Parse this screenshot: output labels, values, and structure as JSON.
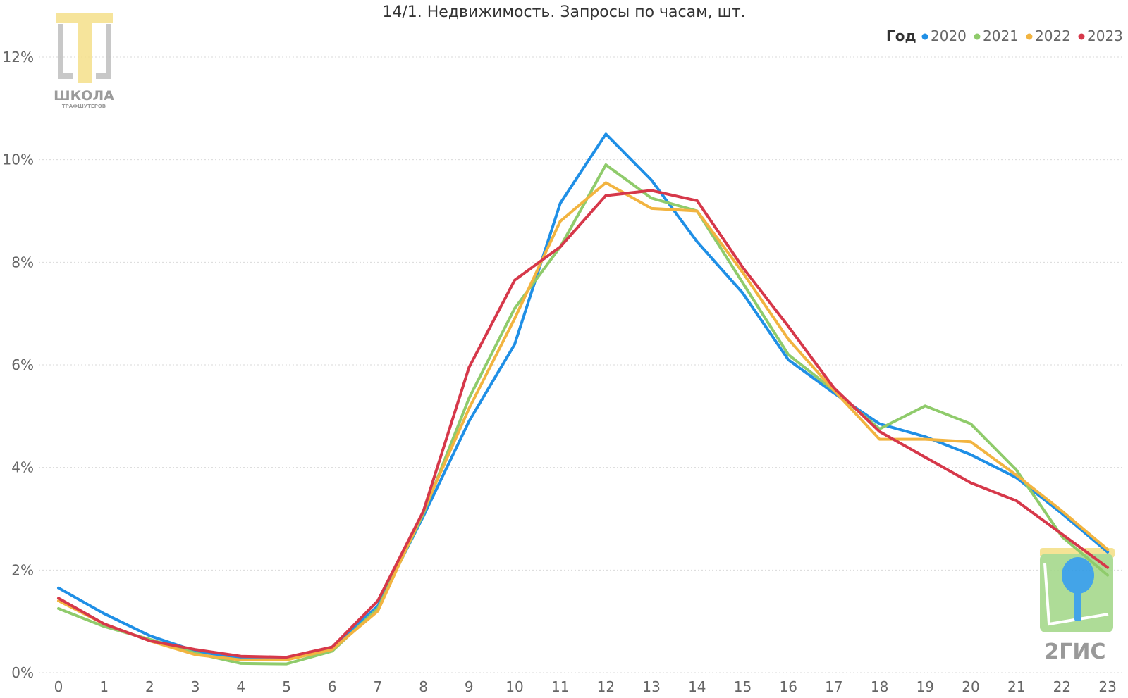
{
  "chart_data": {
    "type": "line",
    "title": "14/1. Недвижимость. Запросы по часам, шт.",
    "xlabel": "",
    "ylabel": "",
    "categories": [
      "0",
      "1",
      "2",
      "3",
      "4",
      "5",
      "6",
      "7",
      "8",
      "9",
      "10",
      "11",
      "12",
      "13",
      "14",
      "15",
      "16",
      "17",
      "18",
      "19",
      "20",
      "21",
      "22",
      "23"
    ],
    "ylim": [
      0,
      12
    ],
    "yticks": [
      0,
      2,
      4,
      6,
      8,
      10,
      12
    ],
    "ytick_labels": [
      "0%",
      "2%",
      "4%",
      "6%",
      "8%",
      "10%",
      "12%"
    ],
    "grid": true,
    "legend": {
      "title": "Год",
      "position": "top-right"
    },
    "series": [
      {
        "name": "2020",
        "color": "#1f8fe6",
        "values": [
          1.65,
          1.15,
          0.72,
          0.42,
          0.28,
          0.27,
          0.5,
          1.3,
          3.05,
          4.9,
          6.4,
          9.15,
          10.5,
          9.6,
          8.4,
          7.4,
          6.1,
          5.45,
          4.85,
          4.6,
          4.25,
          3.8,
          3.1,
          2.35
        ]
      },
      {
        "name": "2021",
        "color": "#8fcb6b",
        "values": [
          1.25,
          0.9,
          0.65,
          0.38,
          0.18,
          0.17,
          0.42,
          1.25,
          3.1,
          5.35,
          7.1,
          8.3,
          9.9,
          9.25,
          9.0,
          7.6,
          6.2,
          5.5,
          4.75,
          5.2,
          4.85,
          3.95,
          2.65,
          1.9
        ]
      },
      {
        "name": "2022",
        "color": "#f2b440",
        "values": [
          1.4,
          0.95,
          0.62,
          0.35,
          0.25,
          0.25,
          0.45,
          1.2,
          3.15,
          5.15,
          6.9,
          8.8,
          9.55,
          9.05,
          9.0,
          7.8,
          6.5,
          5.5,
          4.55,
          4.55,
          4.5,
          3.85,
          3.15,
          2.4
        ]
      },
      {
        "name": "2023",
        "color": "#d6384a",
        "values": [
          1.45,
          0.95,
          0.62,
          0.45,
          0.32,
          0.3,
          0.5,
          1.4,
          3.15,
          5.95,
          7.65,
          8.3,
          9.3,
          9.4,
          9.2,
          7.9,
          6.75,
          5.55,
          4.7,
          4.2,
          3.7,
          3.35,
          2.7,
          2.05
        ]
      }
    ]
  },
  "logos": {
    "school": {
      "name": "ШКОЛА",
      "sub": "ТРАФШУТЕРОВ",
      "accent": "#f5e08a",
      "gray": "#bfbfbf"
    },
    "twogis": {
      "name": "2ГИС",
      "green": "#a6d98c",
      "blue": "#2f9be6",
      "yellow": "#f5e08a"
    }
  }
}
